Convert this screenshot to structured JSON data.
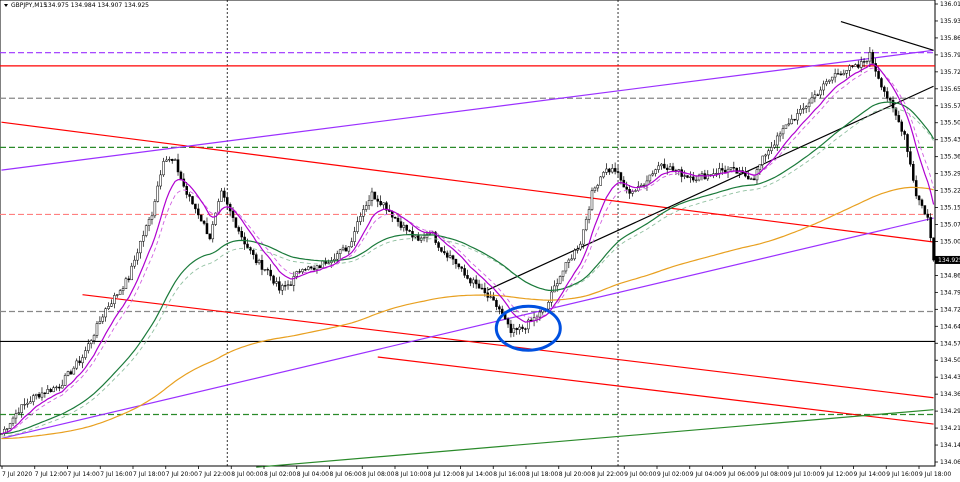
{
  "header": {
    "symbol_label": "GBPJPY,M15",
    "ohlc_label": "134.975 134.984 134.907 134.925"
  },
  "colors": {
    "bull": "#ffffff",
    "bear": "#000000",
    "wick": "#000000",
    "ma_fast": "#b000d0",
    "ma_fast_dash": "#d060e0",
    "ma_mid": "#1a7a3a",
    "ma_mid_dash": "#90c0a0",
    "ma_slow": "#e8a020",
    "red": "#ff0000",
    "purple": "#9b30ff",
    "black": "#000000",
    "green": "#2a8a2a",
    "circle": "#0050e0",
    "current_price_bg": "#000000",
    "current_price_text": "#ffffff"
  },
  "chart_data": {
    "type": "candlestick",
    "symbol": "GBPJPY",
    "timeframe": "M15",
    "ylim": [
      134.065,
      136.01
    ],
    "current_price": "134.925",
    "y_ticks": [
      "136.010",
      "135.935",
      "135.860",
      "135.790",
      "135.720",
      "135.650",
      "135.575",
      "135.505",
      "135.435",
      "135.365",
      "135.290",
      "135.220",
      "135.150",
      "135.075",
      "135.005",
      "134.930",
      "134.860",
      "134.790",
      "134.720",
      "134.640",
      "134.575",
      "134.505",
      "134.430",
      "134.360",
      "134.290",
      "134.215",
      "134.145",
      "134.065"
    ],
    "x_ticks": [
      "7 Jul 2020",
      "7 Jul 12:00",
      "7 Jul 14:00",
      "7 Jul 16:00",
      "7 Jul 18:00",
      "7 Jul 20:00",
      "7 Jul 22:00",
      "8 Jul 00:00",
      "8 Jul 02:00",
      "8 Jul 04:00",
      "8 Jul 06:00",
      "8 Jul 08:00",
      "8 Jul 10:00",
      "8 Jul 12:00",
      "8 Jul 14:00",
      "8 Jul 16:00",
      "8 Jul 18:00",
      "8 Jul 20:00",
      "8 Jul 22:00",
      "9 Jul 00:00",
      "9 Jul 02:00",
      "9 Jul 04:00",
      "9 Jul 06:00",
      "9 Jul 08:00",
      "9 Jul 10:00",
      "9 Jul 12:00",
      "9 Jul 14:00",
      "9 Jul 16:00",
      "9 Jul 18:00"
    ],
    "close_path": [
      [
        0,
        134.2
      ],
      [
        6,
        134.3
      ],
      [
        12,
        134.36
      ],
      [
        20,
        134.4
      ],
      [
        28,
        134.52
      ],
      [
        36,
        134.72
      ],
      [
        44,
        134.85
      ],
      [
        48,
        135.0
      ],
      [
        52,
        135.12
      ],
      [
        56,
        135.35
      ],
      [
        60,
        135.33
      ],
      [
        64,
        135.2
      ],
      [
        68,
        135.12
      ],
      [
        72,
        135.02
      ],
      [
        76,
        135.2
      ],
      [
        80,
        135.1
      ],
      [
        84,
        135.0
      ],
      [
        88,
        134.92
      ],
      [
        92,
        134.88
      ],
      [
        96,
        134.8
      ],
      [
        100,
        134.83
      ],
      [
        104,
        134.9
      ],
      [
        108,
        134.88
      ],
      [
        112,
        134.92
      ],
      [
        116,
        134.95
      ],
      [
        120,
        134.98
      ],
      [
        124,
        135.12
      ],
      [
        128,
        135.2
      ],
      [
        132,
        135.16
      ],
      [
        136,
        135.1
      ],
      [
        140,
        135.05
      ],
      [
        144,
        135.0
      ],
      [
        148,
        135.05
      ],
      [
        152,
        134.97
      ],
      [
        156,
        134.93
      ],
      [
        160,
        134.86
      ],
      [
        164,
        134.82
      ],
      [
        168,
        134.77
      ],
      [
        172,
        134.72
      ],
      [
        176,
        134.62
      ],
      [
        180,
        134.64
      ],
      [
        184,
        134.68
      ],
      [
        188,
        134.72
      ],
      [
        192,
        134.84
      ],
      [
        196,
        134.92
      ],
      [
        200,
        135.0
      ],
      [
        204,
        135.2
      ],
      [
        208,
        135.3
      ],
      [
        212,
        135.3
      ],
      [
        216,
        135.21
      ],
      [
        220,
        135.22
      ],
      [
        224,
        135.28
      ],
      [
        228,
        135.33
      ],
      [
        232,
        135.3
      ],
      [
        236,
        135.28
      ],
      [
        240,
        135.27
      ],
      [
        244,
        135.28
      ],
      [
        248,
        135.3
      ],
      [
        252,
        135.3
      ],
      [
        256,
        135.28
      ],
      [
        260,
        135.27
      ],
      [
        264,
        135.37
      ],
      [
        268,
        135.43
      ],
      [
        272,
        135.5
      ],
      [
        276,
        135.54
      ],
      [
        280,
        135.6
      ],
      [
        284,
        135.65
      ],
      [
        288,
        135.7
      ],
      [
        292,
        135.72
      ],
      [
        296,
        135.73
      ],
      [
        300,
        135.78
      ],
      [
        304,
        135.66
      ],
      [
        308,
        135.55
      ],
      [
        312,
        135.45
      ],
      [
        316,
        135.2
      ],
      [
        320,
        135.1
      ],
      [
        322,
        134.925
      ]
    ]
  },
  "lines": [
    {
      "name": "red-upper-channel-line",
      "color": "red",
      "p1": [
        0.0,
        135.5
      ],
      "p2": [
        322.0,
        135.0
      ],
      "dash": false
    },
    {
      "name": "red-lower-channel-line",
      "color": "red",
      "p1": [
        28.0,
        134.78
      ],
      "p2": [
        322.0,
        134.35
      ],
      "dash": false
    },
    {
      "name": "red-lower-channel-line-2",
      "color": "red",
      "p1": [
        130.0,
        134.52
      ],
      "p2": [
        322.0,
        134.24
      ],
      "dash": false
    },
    {
      "name": "purple-upper-trendline",
      "color": "purple",
      "p1": [
        0.0,
        135.3
      ],
      "p2": [
        322.0,
        135.8
      ],
      "dash": false
    },
    {
      "name": "purple-lower-trendline",
      "color": "purple",
      "p1": [
        0.0,
        134.18
      ],
      "p2": [
        322.0,
        135.1
      ],
      "dash": false
    },
    {
      "name": "black-support-trendline",
      "color": "black",
      "p1": [
        168.0,
        134.8
      ],
      "p2": [
        322.0,
        135.65
      ],
      "dash": false
    },
    {
      "name": "black-top-trendline",
      "color": "black",
      "p1": [
        290.0,
        135.92
      ],
      "p2": [
        322.0,
        135.8
      ],
      "dash": false
    },
    {
      "name": "green-bottom-trendline",
      "color": "green",
      "p1": [
        88.0,
        134.06
      ],
      "p2": [
        322.0,
        134.3
      ],
      "dash": false
    }
  ],
  "hlines": [
    {
      "name": "red-solid-resistance-line",
      "color": "red",
      "price": 135.735,
      "dash": false
    },
    {
      "name": "black-solid-support-line",
      "color": "black",
      "price": 134.585,
      "dash": false
    },
    {
      "name": "purple-dashed-line",
      "color": "purple",
      "price": 135.79,
      "dash": true
    },
    {
      "name": "gray-dashed-line-upper",
      "color": "gray",
      "price": 135.6,
      "dash": true
    },
    {
      "name": "green-dashed-line-upper",
      "color": "green",
      "price": 135.395,
      "dash": true
    },
    {
      "name": "pink-dashed-line",
      "color": "pink",
      "price": 135.115,
      "dash": true
    },
    {
      "name": "gray-dashed-line-lower",
      "color": "gray",
      "price": 134.71,
      "dash": true
    },
    {
      "name": "green-dashed-line-lower",
      "color": "green",
      "price": 134.28,
      "dash": true
    }
  ],
  "vlines": [
    78,
    213
  ]
}
